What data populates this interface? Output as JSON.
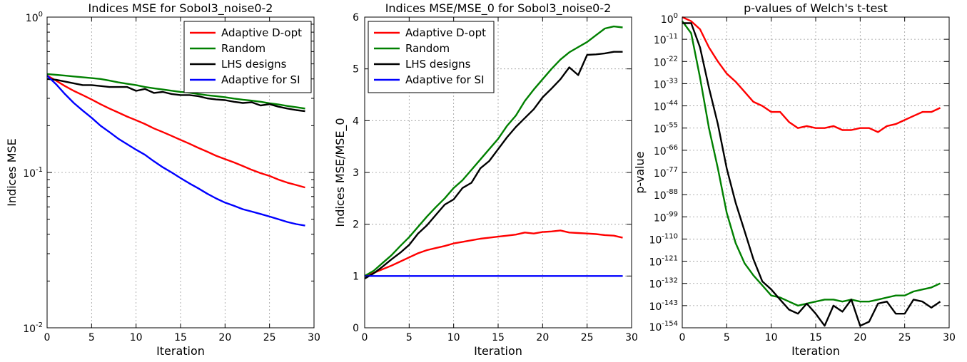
{
  "colors": {
    "red": "#ff0000",
    "green": "#008000",
    "black": "#000000",
    "blue": "#0000ff"
  },
  "chart_data": [
    {
      "type": "line",
      "title": "Indices MSE for Sobol3_noise0-2",
      "xlabel": "Iteration",
      "ylabel": "Indices MSE",
      "yscale": "log",
      "xlim": [
        0,
        30
      ],
      "ylim": [
        0.01,
        1
      ],
      "xticks": [
        "0",
        "5",
        "10",
        "15",
        "20",
        "25",
        "30"
      ],
      "yticks": [
        {
          "value": 1,
          "base": "10",
          "exp": "0"
        },
        {
          "value": 0.1,
          "base": "10",
          "exp": "-1"
        },
        {
          "value": 0.01,
          "base": "10",
          "exp": "-2"
        }
      ],
      "grid": true,
      "legend": "top-right",
      "series": [
        {
          "name": "Adaptive D-opt",
          "color": "#ff0000",
          "x": [
            0,
            1,
            2,
            3,
            4,
            5,
            6,
            7,
            8,
            9,
            10,
            11,
            12,
            13,
            14,
            15,
            16,
            17,
            18,
            19,
            20,
            21,
            22,
            23,
            24,
            25,
            26,
            27,
            28,
            29
          ],
          "y": [
            0.42,
            0.39,
            0.36,
            0.335,
            0.315,
            0.295,
            0.275,
            0.258,
            0.243,
            0.229,
            0.217,
            0.205,
            0.192,
            0.182,
            0.172,
            0.162,
            0.153,
            0.144,
            0.136,
            0.128,
            0.122,
            0.116,
            0.11,
            0.104,
            0.099,
            0.095,
            0.09,
            0.086,
            0.083,
            0.08
          ]
        },
        {
          "name": "Random",
          "color": "#008000",
          "x": [
            0,
            1,
            2,
            3,
            4,
            5,
            6,
            7,
            8,
            9,
            10,
            11,
            12,
            13,
            14,
            15,
            16,
            17,
            18,
            19,
            20,
            21,
            22,
            23,
            24,
            25,
            26,
            27,
            28,
            29
          ],
          "y": [
            0.43,
            0.425,
            0.42,
            0.415,
            0.41,
            0.405,
            0.4,
            0.39,
            0.38,
            0.372,
            0.365,
            0.355,
            0.348,
            0.342,
            0.336,
            0.33,
            0.326,
            0.32,
            0.314,
            0.31,
            0.305,
            0.299,
            0.294,
            0.29,
            0.285,
            0.279,
            0.274,
            0.268,
            0.263,
            0.258
          ]
        },
        {
          "name": "LHS designs",
          "color": "#000000",
          "x": [
            0,
            1,
            2,
            3,
            4,
            5,
            6,
            7,
            8,
            9,
            10,
            11,
            12,
            13,
            14,
            15,
            16,
            17,
            18,
            19,
            20,
            21,
            22,
            23,
            24,
            25,
            26,
            27,
            28,
            29
          ],
          "y": [
            0.4,
            0.395,
            0.385,
            0.375,
            0.365,
            0.365,
            0.36,
            0.355,
            0.355,
            0.355,
            0.335,
            0.345,
            0.325,
            0.33,
            0.32,
            0.315,
            0.315,
            0.31,
            0.3,
            0.295,
            0.292,
            0.285,
            0.28,
            0.283,
            0.27,
            0.275,
            0.265,
            0.258,
            0.252,
            0.248
          ]
        },
        {
          "name": "Adaptive for SI",
          "color": "#0000ff",
          "x": [
            0,
            1,
            2,
            3,
            4,
            5,
            6,
            7,
            8,
            9,
            10,
            11,
            12,
            13,
            14,
            15,
            16,
            17,
            18,
            19,
            20,
            21,
            22,
            23,
            24,
            25,
            26,
            27,
            28,
            29
          ],
          "y": [
            0.42,
            0.37,
            0.32,
            0.28,
            0.25,
            0.225,
            0.2,
            0.182,
            0.165,
            0.152,
            0.14,
            0.13,
            0.118,
            0.108,
            0.1,
            0.092,
            0.085,
            0.079,
            0.073,
            0.068,
            0.064,
            0.061,
            0.058,
            0.056,
            0.054,
            0.052,
            0.05,
            0.048,
            0.0465,
            0.0455
          ]
        }
      ]
    },
    {
      "type": "line",
      "title": "Indices MSE/MSE_0 for Sobol3_noise0-2",
      "xlabel": "Iteration",
      "ylabel": "Indices MSE/MSE_0",
      "yscale": "linear",
      "xlim": [
        0,
        30
      ],
      "ylim": [
        0,
        6
      ],
      "xticks": [
        "0",
        "5",
        "10",
        "15",
        "20",
        "25",
        "30"
      ],
      "yticks": [
        "0",
        "1",
        "2",
        "3",
        "4",
        "5",
        "6"
      ],
      "grid": true,
      "legend": "top-left",
      "series": [
        {
          "name": "Adaptive D-opt",
          "color": "#ff0000",
          "x": [
            0,
            1,
            2,
            3,
            4,
            5,
            6,
            7,
            8,
            9,
            10,
            11,
            12,
            13,
            14,
            15,
            16,
            17,
            18,
            19,
            20,
            21,
            22,
            23,
            24,
            25,
            26,
            27,
            28,
            29
          ],
          "y": [
            1.0,
            1.06,
            1.13,
            1.2,
            1.28,
            1.36,
            1.44,
            1.5,
            1.54,
            1.58,
            1.63,
            1.66,
            1.69,
            1.72,
            1.74,
            1.76,
            1.78,
            1.8,
            1.84,
            1.82,
            1.85,
            1.86,
            1.88,
            1.84,
            1.83,
            1.82,
            1.81,
            1.79,
            1.78,
            1.74
          ]
        },
        {
          "name": "Random",
          "color": "#008000",
          "x": [
            0,
            1,
            2,
            3,
            4,
            5,
            6,
            7,
            8,
            9,
            10,
            11,
            12,
            13,
            14,
            15,
            16,
            17,
            18,
            19,
            20,
            21,
            22,
            23,
            24,
            25,
            26,
            27,
            28,
            29
          ],
          "y": [
            1.0,
            1.1,
            1.25,
            1.4,
            1.58,
            1.75,
            1.95,
            2.15,
            2.33,
            2.5,
            2.7,
            2.85,
            3.05,
            3.25,
            3.45,
            3.65,
            3.9,
            4.1,
            4.38,
            4.6,
            4.8,
            5.0,
            5.18,
            5.32,
            5.42,
            5.52,
            5.65,
            5.78,
            5.82,
            5.8
          ]
        },
        {
          "name": "LHS designs",
          "color": "#000000",
          "x": [
            0,
            1,
            2,
            3,
            4,
            5,
            6,
            7,
            8,
            9,
            10,
            11,
            12,
            13,
            14,
            15,
            16,
            17,
            18,
            19,
            20,
            21,
            22,
            23,
            24,
            25,
            26,
            27,
            28,
            29
          ],
          "y": [
            0.95,
            1.05,
            1.18,
            1.32,
            1.45,
            1.6,
            1.82,
            1.98,
            2.18,
            2.38,
            2.48,
            2.7,
            2.8,
            3.08,
            3.22,
            3.45,
            3.68,
            3.88,
            4.05,
            4.22,
            4.45,
            4.62,
            4.8,
            5.03,
            4.88,
            5.27,
            5.28,
            5.3,
            5.33,
            5.33
          ]
        },
        {
          "name": "Adaptive for SI",
          "color": "#0000ff",
          "x": [
            0,
            1,
            2,
            3,
            4,
            5,
            6,
            7,
            8,
            9,
            10,
            11,
            12,
            13,
            14,
            15,
            16,
            17,
            18,
            19,
            20,
            21,
            22,
            23,
            24,
            25,
            26,
            27,
            28,
            29
          ],
          "y": [
            1,
            1,
            1,
            1,
            1,
            1,
            1,
            1,
            1,
            1,
            1,
            1,
            1,
            1,
            1,
            1,
            1,
            1,
            1,
            1,
            1,
            1,
            1,
            1,
            1,
            1,
            1,
            1,
            1,
            1
          ]
        }
      ]
    },
    {
      "type": "line",
      "title": "p-values of Welch's t-test",
      "xlabel": "Iteration",
      "ylabel": "p-value",
      "yscale": "log",
      "xlim": [
        0,
        30
      ],
      "ylim_exp": [
        -154,
        0
      ],
      "xticks": [
        "0",
        "5",
        "10",
        "15",
        "20",
        "25",
        "30"
      ],
      "yticks": [
        {
          "exp_value": 0,
          "base": "10",
          "exp": "0"
        },
        {
          "exp_value": -11,
          "base": "10",
          "exp": "-11"
        },
        {
          "exp_value": -22,
          "base": "10",
          "exp": "-22"
        },
        {
          "exp_value": -33,
          "base": "10",
          "exp": "-33"
        },
        {
          "exp_value": -44,
          "base": "10",
          "exp": "-44"
        },
        {
          "exp_value": -55,
          "base": "10",
          "exp": "-55"
        },
        {
          "exp_value": -66,
          "base": "10",
          "exp": "-66"
        },
        {
          "exp_value": -77,
          "base": "10",
          "exp": "-77"
        },
        {
          "exp_value": -88,
          "base": "10",
          "exp": "-88"
        },
        {
          "exp_value": -99,
          "base": "10",
          "exp": "-99"
        },
        {
          "exp_value": -110,
          "base": "10",
          "exp": "-110"
        },
        {
          "exp_value": -121,
          "base": "10",
          "exp": "-121"
        },
        {
          "exp_value": -132,
          "base": "10",
          "exp": "-132"
        },
        {
          "exp_value": -143,
          "base": "10",
          "exp": "-143"
        },
        {
          "exp_value": -154,
          "base": "10",
          "exp": "-154"
        }
      ],
      "grid": true,
      "legend": "none",
      "series": [
        {
          "color": "#ff0000",
          "x": [
            0,
            1,
            2,
            3,
            4,
            5,
            6,
            7,
            8,
            9,
            10,
            11,
            12,
            13,
            14,
            15,
            16,
            17,
            18,
            19,
            20,
            21,
            22,
            23,
            24,
            25,
            26,
            27,
            28,
            29
          ],
          "y_exp": [
            0,
            -2,
            -6,
            -15,
            -22,
            -28,
            -32,
            -37,
            -42,
            -44,
            -47,
            -47,
            -52,
            -55,
            -54,
            -55,
            -55,
            -54,
            -56,
            -56,
            -55,
            -55,
            -57,
            -54,
            -53,
            -51,
            -49,
            -47,
            -47,
            -45
          ]
        },
        {
          "color": "#008000",
          "x": [
            0,
            1,
            2,
            3,
            4,
            5,
            6,
            7,
            8,
            9,
            10,
            11,
            12,
            13,
            14,
            15,
            16,
            17,
            18,
            19,
            20,
            21,
            22,
            23,
            24,
            25,
            26,
            27,
            28,
            29
          ],
          "y_exp": [
            -2,
            -8,
            -30,
            -55,
            -75,
            -97,
            -112,
            -122,
            -128,
            -133,
            -138,
            -139,
            -141,
            -143,
            -142,
            -141,
            -140,
            -140,
            -141,
            -140,
            -141,
            -141,
            -140,
            -139,
            -138,
            -138,
            -136,
            -135,
            -134,
            -132
          ]
        },
        {
          "color": "#000000",
          "x": [
            0,
            1,
            2,
            3,
            4,
            5,
            6,
            7,
            8,
            9,
            10,
            11,
            12,
            13,
            14,
            15,
            16,
            17,
            18,
            19,
            20,
            21,
            22,
            23,
            24,
            25,
            26,
            27,
            28,
            29
          ],
          "y_exp": [
            -3,
            -3,
            -15,
            -35,
            -53,
            -75,
            -92,
            -106,
            -120,
            -131,
            -135,
            -140,
            -145,
            -147,
            -142,
            -147,
            -153,
            -143,
            -146,
            -140,
            -153,
            -151,
            -142,
            -141,
            -147,
            -147,
            -140,
            -141,
            -144,
            -141
          ]
        }
      ]
    }
  ]
}
